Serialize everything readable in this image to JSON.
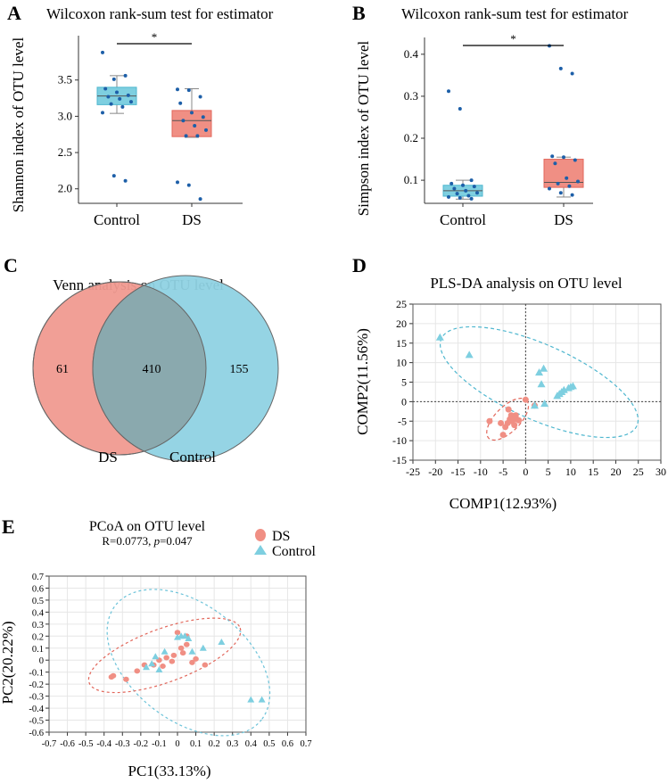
{
  "colors": {
    "control": "#7ecfe0",
    "control_dark": "#4fb7cf",
    "ds": "#f08f84",
    "ds_dark": "#e2675b",
    "point": "#1d5fa8",
    "grid": "#e6e6e6"
  },
  "chart_data": [
    {
      "panel": "A",
      "type": "box",
      "title": "Wilcoxon rank-sum test for estimator",
      "ylabel": "Shannon index of OTU level",
      "categories": [
        "Control",
        "DS"
      ],
      "ylim": [
        1.8,
        4.05
      ],
      "yticks": [
        "2.0",
        "2.5",
        "3.0",
        "3.5"
      ],
      "significance": "*",
      "boxes": [
        {
          "q1": 3.16,
          "median": 3.28,
          "q3": 3.4,
          "whisker_low": 3.04,
          "whisker_high": 3.56
        },
        {
          "q1": 2.72,
          "median": 2.94,
          "q3": 3.08,
          "whisker_low": 2.71,
          "whisker_high": 3.38
        }
      ],
      "points": [
        [
          3.88,
          3.51,
          3.56,
          3.38,
          3.33,
          3.29,
          3.27,
          3.24,
          3.2,
          3.17,
          3.13,
          3.05,
          2.18,
          2.11
        ],
        [
          3.37,
          3.36,
          3.27,
          3.18,
          3.05,
          2.99,
          2.94,
          2.87,
          2.81,
          2.73,
          2.73,
          2.09,
          2.05,
          1.86
        ]
      ]
    },
    {
      "panel": "B",
      "type": "box",
      "title": "Wilcoxon rank-sum test for estimator",
      "ylabel": "Simpson index of OTU level",
      "categories": [
        "Control",
        "DS"
      ],
      "ylim": [
        0.045,
        0.44
      ],
      "yticks": [
        "0.1",
        "0.2",
        "0.3",
        "0.4"
      ],
      "significance": "*",
      "boxes": [
        {
          "q1": 0.062,
          "median": 0.075,
          "q3": 0.088,
          "whisker_low": 0.055,
          "whisker_high": 0.1
        },
        {
          "q1": 0.083,
          "median": 0.095,
          "q3": 0.15,
          "whisker_low": 0.06,
          "whisker_high": 0.155
        }
      ],
      "points": [
        [
          0.312,
          0.27,
          0.1,
          0.092,
          0.088,
          0.085,
          0.08,
          0.075,
          0.07,
          0.068,
          0.063,
          0.06,
          0.058,
          0.056
        ],
        [
          0.42,
          0.366,
          0.354,
          0.157,
          0.155,
          0.148,
          0.14,
          0.105,
          0.097,
          0.092,
          0.086,
          0.08,
          0.07,
          0.065
        ]
      ]
    },
    {
      "panel": "C",
      "type": "venn",
      "title": "Venn analysis on OTU level",
      "sets": [
        {
          "name": "DS",
          "only": 61
        },
        {
          "name": "Control",
          "only": 155
        }
      ],
      "shared": 410
    },
    {
      "panel": "D",
      "type": "scatter",
      "title": "PLS-DA analysis on OTU level",
      "xlabel": "COMP1(12.93%)",
      "ylabel": "COMP2(11.56%)",
      "xlim": [
        -25,
        30
      ],
      "ylim": [
        -15,
        25
      ],
      "xticks": [
        -25,
        -20,
        -15,
        -10,
        -5,
        0,
        5,
        10,
        15,
        20,
        25,
        30
      ],
      "yticks": [
        -15,
        -10,
        -5,
        0,
        5,
        10,
        15,
        20,
        25
      ],
      "series": [
        {
          "name": "DS",
          "marker": "circle",
          "points": [
            [
              -8,
              -5
            ],
            [
              -5.5,
              -5.5
            ],
            [
              -5,
              -8.5
            ],
            [
              -4.5,
              -6.5
            ],
            [
              -4,
              -5.5
            ],
            [
              -3.5,
              -4.5
            ],
            [
              -3.2,
              -3.5
            ],
            [
              -3,
              -5
            ],
            [
              -2.8,
              -4
            ],
            [
              -2.5,
              -6
            ],
            [
              -2.2,
              -3.5
            ],
            [
              -2,
              -4.5
            ],
            [
              -1.5,
              -4.8
            ],
            [
              -3.8,
              -2
            ],
            [
              0,
              0.5
            ],
            [
              2,
              -1
            ]
          ]
        },
        {
          "name": "Control",
          "marker": "triangle",
          "points": [
            [
              -19,
              16.5
            ],
            [
              -12.5,
              12
            ],
            [
              2,
              -1
            ],
            [
              3,
              7.5
            ],
            [
              3.5,
              4.5
            ],
            [
              4,
              8.5
            ],
            [
              4.2,
              -0.5
            ],
            [
              7,
              1.5
            ],
            [
              7.5,
              2
            ],
            [
              8,
              2.5
            ],
            [
              8.5,
              3
            ],
            [
              9.5,
              3.5
            ],
            [
              10,
              3.8
            ],
            [
              10.5,
              4
            ]
          ]
        }
      ]
    },
    {
      "panel": "E",
      "type": "scatter",
      "title": "PCoA on OTU level",
      "subtitle_prefix": "R=0.0773, ",
      "subtitle_p_label": "p",
      "subtitle_suffix": "=0.047",
      "xlabel": "PC1(33.13%)",
      "ylabel": "PC2(20.22%)",
      "xlim": [
        -0.7,
        0.7
      ],
      "ylim": [
        -0.6,
        0.7
      ],
      "xticks": [
        "-0.7",
        "-0.6",
        "-0.5",
        "-0.4",
        "-0.3",
        "-0.2",
        "-0.1",
        "0",
        "0.1",
        "0.2",
        "0.3",
        "0.4",
        "0.5",
        "0.6",
        "0.7"
      ],
      "yticks": [
        "-0.6",
        "-0.5",
        "-0.4",
        "-0.3",
        "-0.2",
        "-0.1",
        "0",
        "0.1",
        "0.2",
        "0.3",
        "0.4",
        "0.5",
        "0.6",
        "0.7"
      ],
      "legend": [
        "DS",
        "Control"
      ],
      "series": [
        {
          "name": "DS",
          "marker": "circle",
          "points": [
            [
              -0.36,
              -0.14
            ],
            [
              -0.35,
              -0.13
            ],
            [
              -0.28,
              -0.16
            ],
            [
              -0.22,
              -0.09
            ],
            [
              -0.18,
              -0.04
            ],
            [
              -0.13,
              -0.04
            ],
            [
              -0.1,
              0
            ],
            [
              -0.08,
              -0.05
            ],
            [
              -0.06,
              0.02
            ],
            [
              -0.03,
              -0.01
            ],
            [
              -0.02,
              0.04
            ],
            [
              0,
              0.23
            ],
            [
              0.02,
              0.1
            ],
            [
              0.03,
              0.06
            ],
            [
              0.05,
              0.13
            ],
            [
              0.08,
              -0.02
            ],
            [
              0.1,
              0.01
            ],
            [
              0.15,
              -0.04
            ],
            [
              0.05,
              0.2
            ]
          ]
        },
        {
          "name": "Control",
          "marker": "triangle",
          "points": [
            [
              -0.17,
              -0.06
            ],
            [
              -0.14,
              -0.03
            ],
            [
              -0.12,
              0.03
            ],
            [
              -0.1,
              -0.08
            ],
            [
              -0.07,
              0.07
            ],
            [
              0,
              0.19
            ],
            [
              0.02,
              0.2
            ],
            [
              0.04,
              0.2
            ],
            [
              0.06,
              0.18
            ],
            [
              0.08,
              0.07
            ],
            [
              0.14,
              0.1
            ],
            [
              0.24,
              0.15
            ],
            [
              0.4,
              -0.33
            ],
            [
              0.46,
              -0.33
            ]
          ]
        }
      ]
    }
  ],
  "labels": {
    "A": "A",
    "B": "B",
    "C": "C",
    "D": "D",
    "E": "E"
  }
}
